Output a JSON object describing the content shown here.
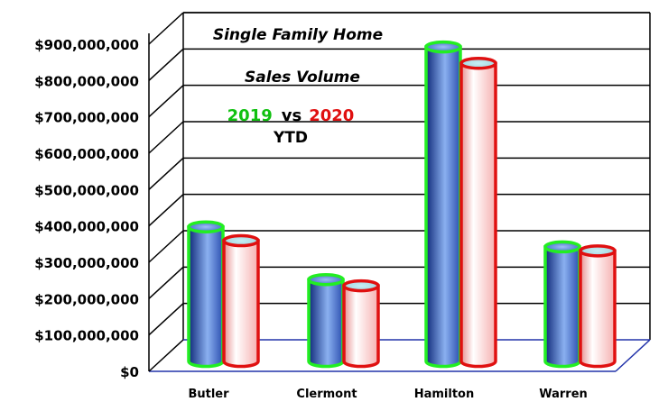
{
  "chart_data": {
    "type": "bar",
    "title_lines": [
      "Single Family Home",
      "Sales Volume"
    ],
    "legend_line": {
      "year_a": "2019",
      "vs": "vs",
      "year_b": "2020",
      "suffix": "YTD"
    },
    "categories": [
      "Butler",
      "Clermont",
      "Hamilton",
      "Warren"
    ],
    "series": [
      {
        "name": "2019",
        "values": [
          380000000,
          235000000,
          875000000,
          325000000
        ]
      },
      {
        "name": "2020",
        "values": [
          342000000,
          218000000,
          830000000,
          314000000
        ]
      }
    ],
    "y_ticks": [
      {
        "value": 0,
        "label": "$0"
      },
      {
        "value": 100000000,
        "label": "$100,000,000"
      },
      {
        "value": 200000000,
        "label": "$200,000,000"
      },
      {
        "value": 300000000,
        "label": "$300,000,000"
      },
      {
        "value": 400000000,
        "label": "$400,000,000"
      },
      {
        "value": 500000000,
        "label": "$500,000,000"
      },
      {
        "value": 600000000,
        "label": "$600,000,000"
      },
      {
        "value": 700000000,
        "label": "$700,000,000"
      },
      {
        "value": 800000000,
        "label": "$800,000,000"
      },
      {
        "value": 900000000,
        "label": "$900,000,000"
      }
    ],
    "ylim": [
      0,
      900000000
    ],
    "xlabel": "",
    "ylabel": "",
    "grid": true,
    "style": "3d-cylinder",
    "colors": {
      "series_a_fill": "#3a64c8",
      "series_a_outline": "#22ee22",
      "series_b_fill": "#ffc2c2",
      "series_b_outline": "#e01010",
      "title_text": "#000000",
      "year_a_text": "#10c010",
      "year_b_text": "#e01010"
    }
  }
}
